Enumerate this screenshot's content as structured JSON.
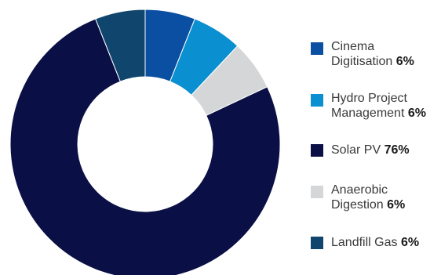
{
  "chart_data": {
    "type": "pie",
    "variant": "donut",
    "legend_position": "right",
    "slices": [
      {
        "name": "Cinema Digitisation",
        "label_lines": [
          "Cinema",
          "Digitisation"
        ],
        "value": 6,
        "value_label": "6%",
        "color": "#0b4fa3"
      },
      {
        "name": "Hydro Project Management",
        "label_lines": [
          "Hydro Project",
          "Management"
        ],
        "value": 6,
        "value_label": "6%",
        "color": "#0a8fd0"
      },
      {
        "name": "Anaerobic Digestion",
        "label_lines": [
          "Anaerobic",
          "Digestion"
        ],
        "value": 6,
        "value_label": "6%",
        "color": "#d5d6d8"
      },
      {
        "name": "Solar PV",
        "label_lines": [
          "Solar PV"
        ],
        "value": 76,
        "value_label": "76%",
        "color": "#0a0f45"
      },
      {
        "name": "Landfill Gas",
        "label_lines": [
          "Landfill Gas"
        ],
        "value": 6,
        "value_label": "6%",
        "color": "#10456e"
      }
    ],
    "legend_order": [
      "Cinema Digitisation",
      "Hydro Project Management",
      "Solar PV",
      "Anaerobic Digestion",
      "Landfill Gas"
    ]
  }
}
